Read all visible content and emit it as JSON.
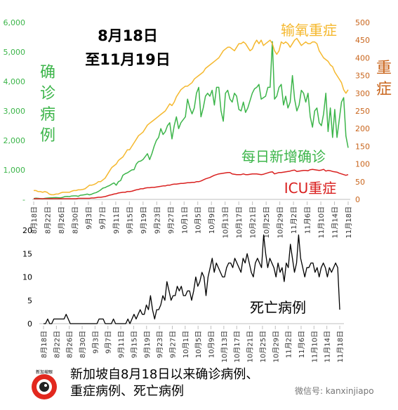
{
  "chart_data": [
    {
      "type": "line",
      "title": "8月18日\n至11月19日",
      "left_axis_label": "确诊病例",
      "right_axis_label": "重症",
      "left_ylim": [
        0,
        6000
      ],
      "right_ylim": [
        0,
        500
      ],
      "left_ticks": [
        "-",
        "1,000",
        "2,000",
        "3,000",
        "4,000",
        "5,000",
        "6,000"
      ],
      "right_ticks": [
        "0",
        "50",
        "100",
        "150",
        "200",
        "250",
        "300",
        "350",
        "400",
        "450",
        "500"
      ],
      "x_tick_labels": [
        "8月18日",
        "8月22日",
        "8月26日",
        "8月30日",
        "9月3日",
        "9月7日",
        "9月11日",
        "9月15日",
        "9月19日",
        "9月23日",
        "9月27日",
        "10月1日",
        "10月5日",
        "10月9日",
        "10月13日",
        "10月17日",
        "10月21日",
        "10月25日",
        "10月29日",
        "11月2日",
        "11月6日",
        "11月10日",
        "11月14日",
        "11月18日"
      ],
      "grid": false,
      "colors": {
        "daily": "#3cb54a",
        "oxygen": "#f5b82e",
        "icu": "#d9201f",
        "left_axis": "#3cb54a",
        "right_axis": "#c9651c"
      },
      "series": [
        {
          "name": "每日新增确诊",
          "axis": "left",
          "color": "#3cb54a",
          "values": [
            30,
            40,
            35,
            25,
            20,
            35,
            45,
            50,
            55,
            60,
            62,
            58,
            50,
            70,
            95,
            100,
            95,
            115,
            120,
            120,
            105,
            140,
            150,
            160,
            180,
            155,
            175,
            210,
            230,
            270,
            320,
            380,
            400,
            440,
            470,
            520,
            560,
            480,
            600,
            640,
            820,
            870,
            900,
            950,
            1000,
            1010,
            1200,
            1280,
            1300,
            1350,
            1450,
            1550,
            1350,
            1550,
            1800,
            2000,
            2100,
            2400,
            2200,
            2300,
            2500,
            2600,
            2050,
            2500,
            2800,
            2400,
            2600,
            2700,
            2800,
            3400,
            3100,
            2900,
            3100,
            3600,
            3800,
            2800,
            3100,
            3500,
            3600,
            3500,
            3700,
            3200,
            3800,
            3800,
            3000,
            2650,
            3600,
            3700,
            3400,
            3300,
            3600,
            3500,
            3050,
            3000,
            3300,
            2950,
            3100,
            3350,
            3600,
            3750,
            3800,
            3900,
            3400,
            3450,
            3500,
            3800,
            3800,
            5350,
            3400,
            3500,
            3800,
            3900,
            3200,
            3500,
            3100,
            3300,
            4200,
            3400,
            3000,
            3200,
            3700,
            3600,
            3300,
            3600,
            2800,
            2450,
            3000,
            3100,
            2600,
            2500,
            2900,
            3600,
            2300,
            3100,
            2100,
            3050,
            2100,
            2700,
            3300,
            3450,
            2150,
            1750
          ]
        },
        {
          "name": "输氧重症",
          "axis": "right",
          "color": "#f5b82e",
          "values": [
            25,
            25,
            22,
            22,
            20,
            22,
            20,
            15,
            13,
            13,
            15,
            15,
            18,
            20,
            20,
            20,
            20,
            23,
            25,
            25,
            27,
            27,
            28,
            30,
            35,
            40,
            40,
            42,
            45,
            50,
            50,
            55,
            60,
            70,
            80,
            90,
            95,
            100,
            110,
            115,
            120,
            130,
            140,
            140,
            150,
            160,
            170,
            180,
            185,
            190,
            200,
            210,
            215,
            220,
            225,
            230,
            235,
            240,
            245,
            250,
            260,
            270,
            265,
            275,
            290,
            300,
            310,
            315,
            320,
            320,
            325,
            330,
            340,
            345,
            350,
            355,
            360,
            370,
            375,
            380,
            385,
            390,
            395,
            400,
            410,
            420,
            425,
            430,
            430,
            425,
            420,
            430,
            440,
            440,
            445,
            440,
            430,
            420,
            425,
            440,
            450,
            440,
            450,
            435,
            440,
            445,
            450,
            440,
            420,
            410,
            420,
            445,
            440,
            445,
            440,
            430,
            440,
            450,
            455,
            445,
            435,
            440,
            445,
            440,
            440,
            445,
            445,
            440,
            420,
            410,
            400,
            395,
            390,
            380,
            375,
            360,
            350,
            340,
            330,
            310,
            300,
            310
          ]
        },
        {
          "name": "ICU重症",
          "axis": "right",
          "color": "#d9201f",
          "values": [
            2,
            2,
            2,
            2,
            2,
            2,
            2,
            2,
            2,
            2,
            2,
            2,
            2,
            2,
            2,
            2,
            2,
            2,
            2,
            2,
            3,
            3,
            3,
            3,
            3,
            3,
            4,
            4,
            5,
            6,
            6,
            7,
            8,
            10,
            12,
            13,
            15,
            16,
            18,
            19,
            20,
            20,
            22,
            22,
            23,
            25,
            27,
            28,
            30,
            30,
            32,
            33,
            33,
            34,
            34,
            35,
            36,
            37,
            38,
            38,
            40,
            40,
            42,
            43,
            43,
            44,
            45,
            45,
            46,
            47,
            47,
            48,
            48,
            50,
            50,
            52,
            55,
            58,
            60,
            62,
            65,
            68,
            70,
            72,
            73,
            74,
            75,
            76,
            76,
            72,
            71,
            70,
            70,
            70,
            72,
            70,
            70,
            71,
            72,
            72,
            72,
            71,
            70,
            71,
            73,
            75,
            77,
            78,
            72,
            74,
            76,
            76,
            77,
            78,
            79,
            80,
            82,
            83,
            79,
            80,
            81,
            82,
            82,
            81,
            84,
            85,
            84,
            83,
            82,
            83,
            85,
            80,
            82,
            81,
            79,
            78,
            77,
            74,
            72,
            70,
            68,
            70
          ]
        }
      ],
      "annotations": [
        "输氧重症",
        "重症",
        "每日新增确诊",
        "ICU重症"
      ]
    },
    {
      "type": "line",
      "title": "",
      "annotation": "死亡病例",
      "ylim": [
        0,
        20
      ],
      "y_ticks": [
        "0",
        "5",
        "10",
        "15",
        "20"
      ],
      "x_tick_labels": [
        "8月18日",
        "8月22日",
        "8月26日",
        "8月30日",
        "9月3日",
        "9月7日",
        "9月11日",
        "9月15日",
        "9月19日",
        "9月23日",
        "9月27日",
        "10月1日",
        "10月5日",
        "10月9日",
        "10月13日",
        "10月17日",
        "10月21日",
        "10月25日",
        "10月29日",
        "11月2日",
        "11月6日",
        "11月10日",
        "11月14日",
        "11月18日"
      ],
      "grid": false,
      "series": [
        {
          "name": "死亡病例",
          "color": "#000000",
          "values": [
            0,
            0,
            1,
            0,
            0,
            1,
            1,
            1,
            1,
            1,
            1,
            2,
            1,
            0,
            0,
            0,
            0,
            0,
            0,
            0,
            0,
            0,
            0,
            0,
            0,
            0,
            0,
            1,
            1,
            1,
            0,
            0,
            0,
            0,
            1,
            0,
            0,
            0,
            0,
            0,
            0,
            1,
            0,
            1,
            2,
            1,
            2,
            3,
            2,
            2,
            4,
            3,
            6,
            3,
            1,
            3,
            3,
            4,
            6,
            5,
            9,
            7,
            5,
            6,
            6,
            8,
            7,
            8,
            6,
            6,
            7,
            7,
            5,
            7,
            10,
            8,
            9,
            11,
            10,
            6,
            10,
            12,
            14,
            11,
            13,
            12,
            11,
            10,
            10,
            12,
            13,
            13,
            12,
            14,
            13,
            12,
            11,
            14,
            13,
            15,
            13,
            11,
            10,
            13,
            14,
            13,
            12,
            19,
            15,
            12,
            14,
            13,
            12,
            10,
            13,
            11,
            12,
            9,
            13,
            12,
            17,
            14,
            11,
            13,
            19,
            14,
            12,
            10,
            12,
            12,
            13,
            13,
            11,
            12,
            10,
            12,
            13,
            12,
            10,
            12,
            11,
            12,
            13,
            12,
            3
          ]
        }
      ]
    }
  ],
  "footer": {
    "caption_line1": "新加坡自8月18日以来确诊病例、",
    "caption_line2": "重症病例、死亡病例",
    "logo_text": "新加坡眼",
    "wechat": "微信号: kanxinjiapo"
  }
}
